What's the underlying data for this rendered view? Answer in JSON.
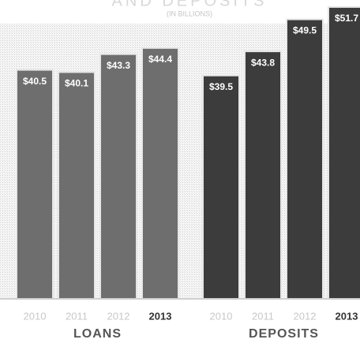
{
  "chart_data": {
    "type": "grouped-bar",
    "title": "AND DEPOSITS",
    "subtitle": "(IN BILLIONS)",
    "groups": [
      {
        "name": "LOANS",
        "color": "#6e6e6e",
        "categories": [
          "2010",
          "2011",
          "2012",
          "2013"
        ],
        "values": [
          40.5,
          40.1,
          43.3,
          44.4
        ],
        "value_labels": [
          "$40.5",
          "$40.1",
          "$43.3",
          "$44.4"
        ]
      },
      {
        "name": "DEPOSITS",
        "color": "#3c3c3c",
        "categories": [
          "2010",
          "2011",
          "2012",
          "2013"
        ],
        "values": [
          39.5,
          43.8,
          49.5,
          51.7
        ],
        "value_labels": [
          "$39.5",
          "$43.8",
          "$49.5",
          "$51.7"
        ]
      }
    ]
  }
}
